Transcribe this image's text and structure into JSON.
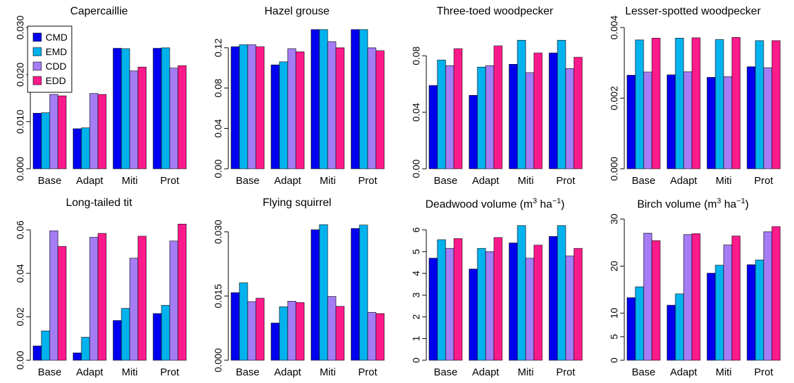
{
  "legend": [
    {
      "label": "CMD",
      "color": "#0000ee"
    },
    {
      "label": "EMD",
      "color": "#00b2ee"
    },
    {
      "label": "CDD",
      "color": "#a57cf5"
    },
    {
      "label": "EDD",
      "color": "#ff1a8c"
    }
  ],
  "chart_data": [
    {
      "type": "bar",
      "title": "Capercaillie",
      "categories": [
        "Base",
        "Adapt",
        "Miti",
        "Prot"
      ],
      "ylim": [
        0,
        0.03
      ],
      "yticks": [
        0,
        0.01,
        0.02,
        0.03
      ],
      "ytick_labels": [
        "0.000",
        "0.010",
        "0.020",
        "0.030"
      ],
      "legend_position": "top-left",
      "series": [
        {
          "name": "CMD",
          "values": [
            0.0118,
            0.0085,
            0.0256,
            0.0256
          ]
        },
        {
          "name": "EMD",
          "values": [
            0.0119,
            0.0087,
            0.0255,
            0.0257
          ]
        },
        {
          "name": "CDD",
          "values": [
            0.0158,
            0.016,
            0.0208,
            0.0214
          ]
        },
        {
          "name": "EDD",
          "values": [
            0.0155,
            0.0158,
            0.0216,
            0.0219
          ]
        }
      ]
    },
    {
      "type": "bar",
      "title": "Hazel grouse",
      "categories": [
        "Base",
        "Adapt",
        "Miti",
        "Prot"
      ],
      "ylim": [
        0,
        0.14
      ],
      "yticks": [
        0,
        0.04,
        0.08,
        0.12
      ],
      "ytick_labels": [
        "0.00",
        "0.04",
        "0.08",
        "0.12"
      ],
      "series": [
        {
          "name": "CMD",
          "values": [
            0.121,
            0.103,
            0.138,
            0.138
          ]
        },
        {
          "name": "EMD",
          "values": [
            0.123,
            0.106,
            0.138,
            0.138
          ]
        },
        {
          "name": "CDD",
          "values": [
            0.123,
            0.119,
            0.126,
            0.12
          ]
        },
        {
          "name": "EDD",
          "values": [
            0.121,
            0.116,
            0.12,
            0.117
          ]
        }
      ]
    },
    {
      "type": "bar",
      "title": "Three-toed woodpecker",
      "categories": [
        "Base",
        "Adapt",
        "Miti",
        "Prot"
      ],
      "ylim": [
        0,
        0.1
      ],
      "yticks": [
        0,
        0.04,
        0.08
      ],
      "ytick_labels": [
        "0.00",
        "0.04",
        "0.08"
      ],
      "series": [
        {
          "name": "CMD",
          "values": [
            0.059,
            0.052,
            0.074,
            0.082
          ]
        },
        {
          "name": "EMD",
          "values": [
            0.077,
            0.072,
            0.091,
            0.091
          ]
        },
        {
          "name": "CDD",
          "values": [
            0.073,
            0.073,
            0.068,
            0.071
          ]
        },
        {
          "name": "EDD",
          "values": [
            0.085,
            0.087,
            0.082,
            0.079
          ]
        }
      ]
    },
    {
      "type": "bar",
      "title": "Lesser-spotted woodpecker",
      "categories": [
        "Base",
        "Adapt",
        "Miti",
        "Prot"
      ],
      "ylim": [
        0,
        0.004
      ],
      "yticks": [
        0,
        0.002,
        0.004
      ],
      "ytick_labels": [
        "0.000",
        "0.002",
        "0.004"
      ],
      "series": [
        {
          "name": "CMD",
          "values": [
            0.00265,
            0.00266,
            0.00259,
            0.00289
          ]
        },
        {
          "name": "EMD",
          "values": [
            0.00365,
            0.0037,
            0.00366,
            0.00363
          ]
        },
        {
          "name": "CDD",
          "values": [
            0.00274,
            0.00275,
            0.00261,
            0.00286
          ]
        },
        {
          "name": "EDD",
          "values": [
            0.0037,
            0.00371,
            0.00372,
            0.00363
          ]
        }
      ]
    },
    {
      "type": "bar",
      "title": "Long-tailed tit",
      "categories": [
        "Base",
        "Adapt",
        "Miti",
        "Prot"
      ],
      "ylim": [
        0,
        0.065
      ],
      "yticks": [
        0,
        0.02,
        0.04,
        0.06
      ],
      "ytick_labels": [
        "0.00",
        "0.02",
        "0.04",
        "0.06"
      ],
      "series": [
        {
          "name": "CMD",
          "values": [
            0.0066,
            0.0034,
            0.0183,
            0.0215
          ]
        },
        {
          "name": "EMD",
          "values": [
            0.0135,
            0.0106,
            0.0239,
            0.0253
          ]
        },
        {
          "name": "CDD",
          "values": [
            0.0596,
            0.0566,
            0.047,
            0.0549
          ]
        },
        {
          "name": "EDD",
          "values": [
            0.0524,
            0.0584,
            0.0571,
            0.0627
          ]
        }
      ]
    },
    {
      "type": "bar",
      "title": "Flying squirrel",
      "categories": [
        "Base",
        "Adapt",
        "Miti",
        "Prot"
      ],
      "ylim": [
        0,
        0.033
      ],
      "yticks": [
        0,
        0.015,
        0.03
      ],
      "ytick_labels": [
        "0.000",
        "0.015",
        "0.030"
      ],
      "series": [
        {
          "name": "CMD",
          "values": [
            0.0158,
            0.0087,
            0.0305,
            0.0308
          ]
        },
        {
          "name": "EMD",
          "values": [
            0.0181,
            0.0125,
            0.0317,
            0.0316
          ]
        },
        {
          "name": "CDD",
          "values": [
            0.0137,
            0.0138,
            0.0149,
            0.0112
          ]
        },
        {
          "name": "EDD",
          "values": [
            0.0145,
            0.0135,
            0.0126,
            0.0109
          ]
        }
      ]
    },
    {
      "type": "bar",
      "title": "Deadwood volume (m",
      "title_sup": "3",
      "title_mid": " ha",
      "title_sup2": "−1",
      "title_end": ")",
      "categories": [
        "Base",
        "Adapt",
        "Miti",
        "Prot"
      ],
      "ylim": [
        0,
        6.5
      ],
      "yticks": [
        0,
        1,
        2,
        3,
        4,
        5,
        6
      ],
      "ytick_labels": [
        "0",
        "1",
        "2",
        "3",
        "4",
        "5",
        "6"
      ],
      "series": [
        {
          "name": "CMD",
          "values": [
            4.7,
            4.2,
            5.4,
            5.7
          ]
        },
        {
          "name": "EMD",
          "values": [
            5.55,
            5.15,
            6.2,
            6.2
          ]
        },
        {
          "name": "CDD",
          "values": [
            5.15,
            5.0,
            4.7,
            4.8
          ]
        },
        {
          "name": "EDD",
          "values": [
            5.6,
            5.65,
            5.3,
            5.15
          ]
        }
      ]
    },
    {
      "type": "bar",
      "title": "Birch volume (m",
      "title_sup": "3",
      "title_mid": " ha",
      "title_sup2": "−1",
      "title_end": ")",
      "categories": [
        "Base",
        "Adapt",
        "Miti",
        "Prot"
      ],
      "ylim": [
        0,
        30
      ],
      "yticks": [
        0,
        5,
        10,
        20,
        30
      ],
      "ytick_labels": [
        "0",
        "5",
        "10",
        "20",
        "30"
      ],
      "series": [
        {
          "name": "CMD",
          "values": [
            13.3,
            11.7,
            18.5,
            20.3
          ]
        },
        {
          "name": "EMD",
          "values": [
            15.6,
            14.1,
            20.2,
            21.3
          ]
        },
        {
          "name": "CDD",
          "values": [
            27.0,
            26.7,
            24.5,
            27.3
          ]
        },
        {
          "name": "EDD",
          "values": [
            25.4,
            26.9,
            26.4,
            28.4
          ]
        }
      ]
    }
  ]
}
